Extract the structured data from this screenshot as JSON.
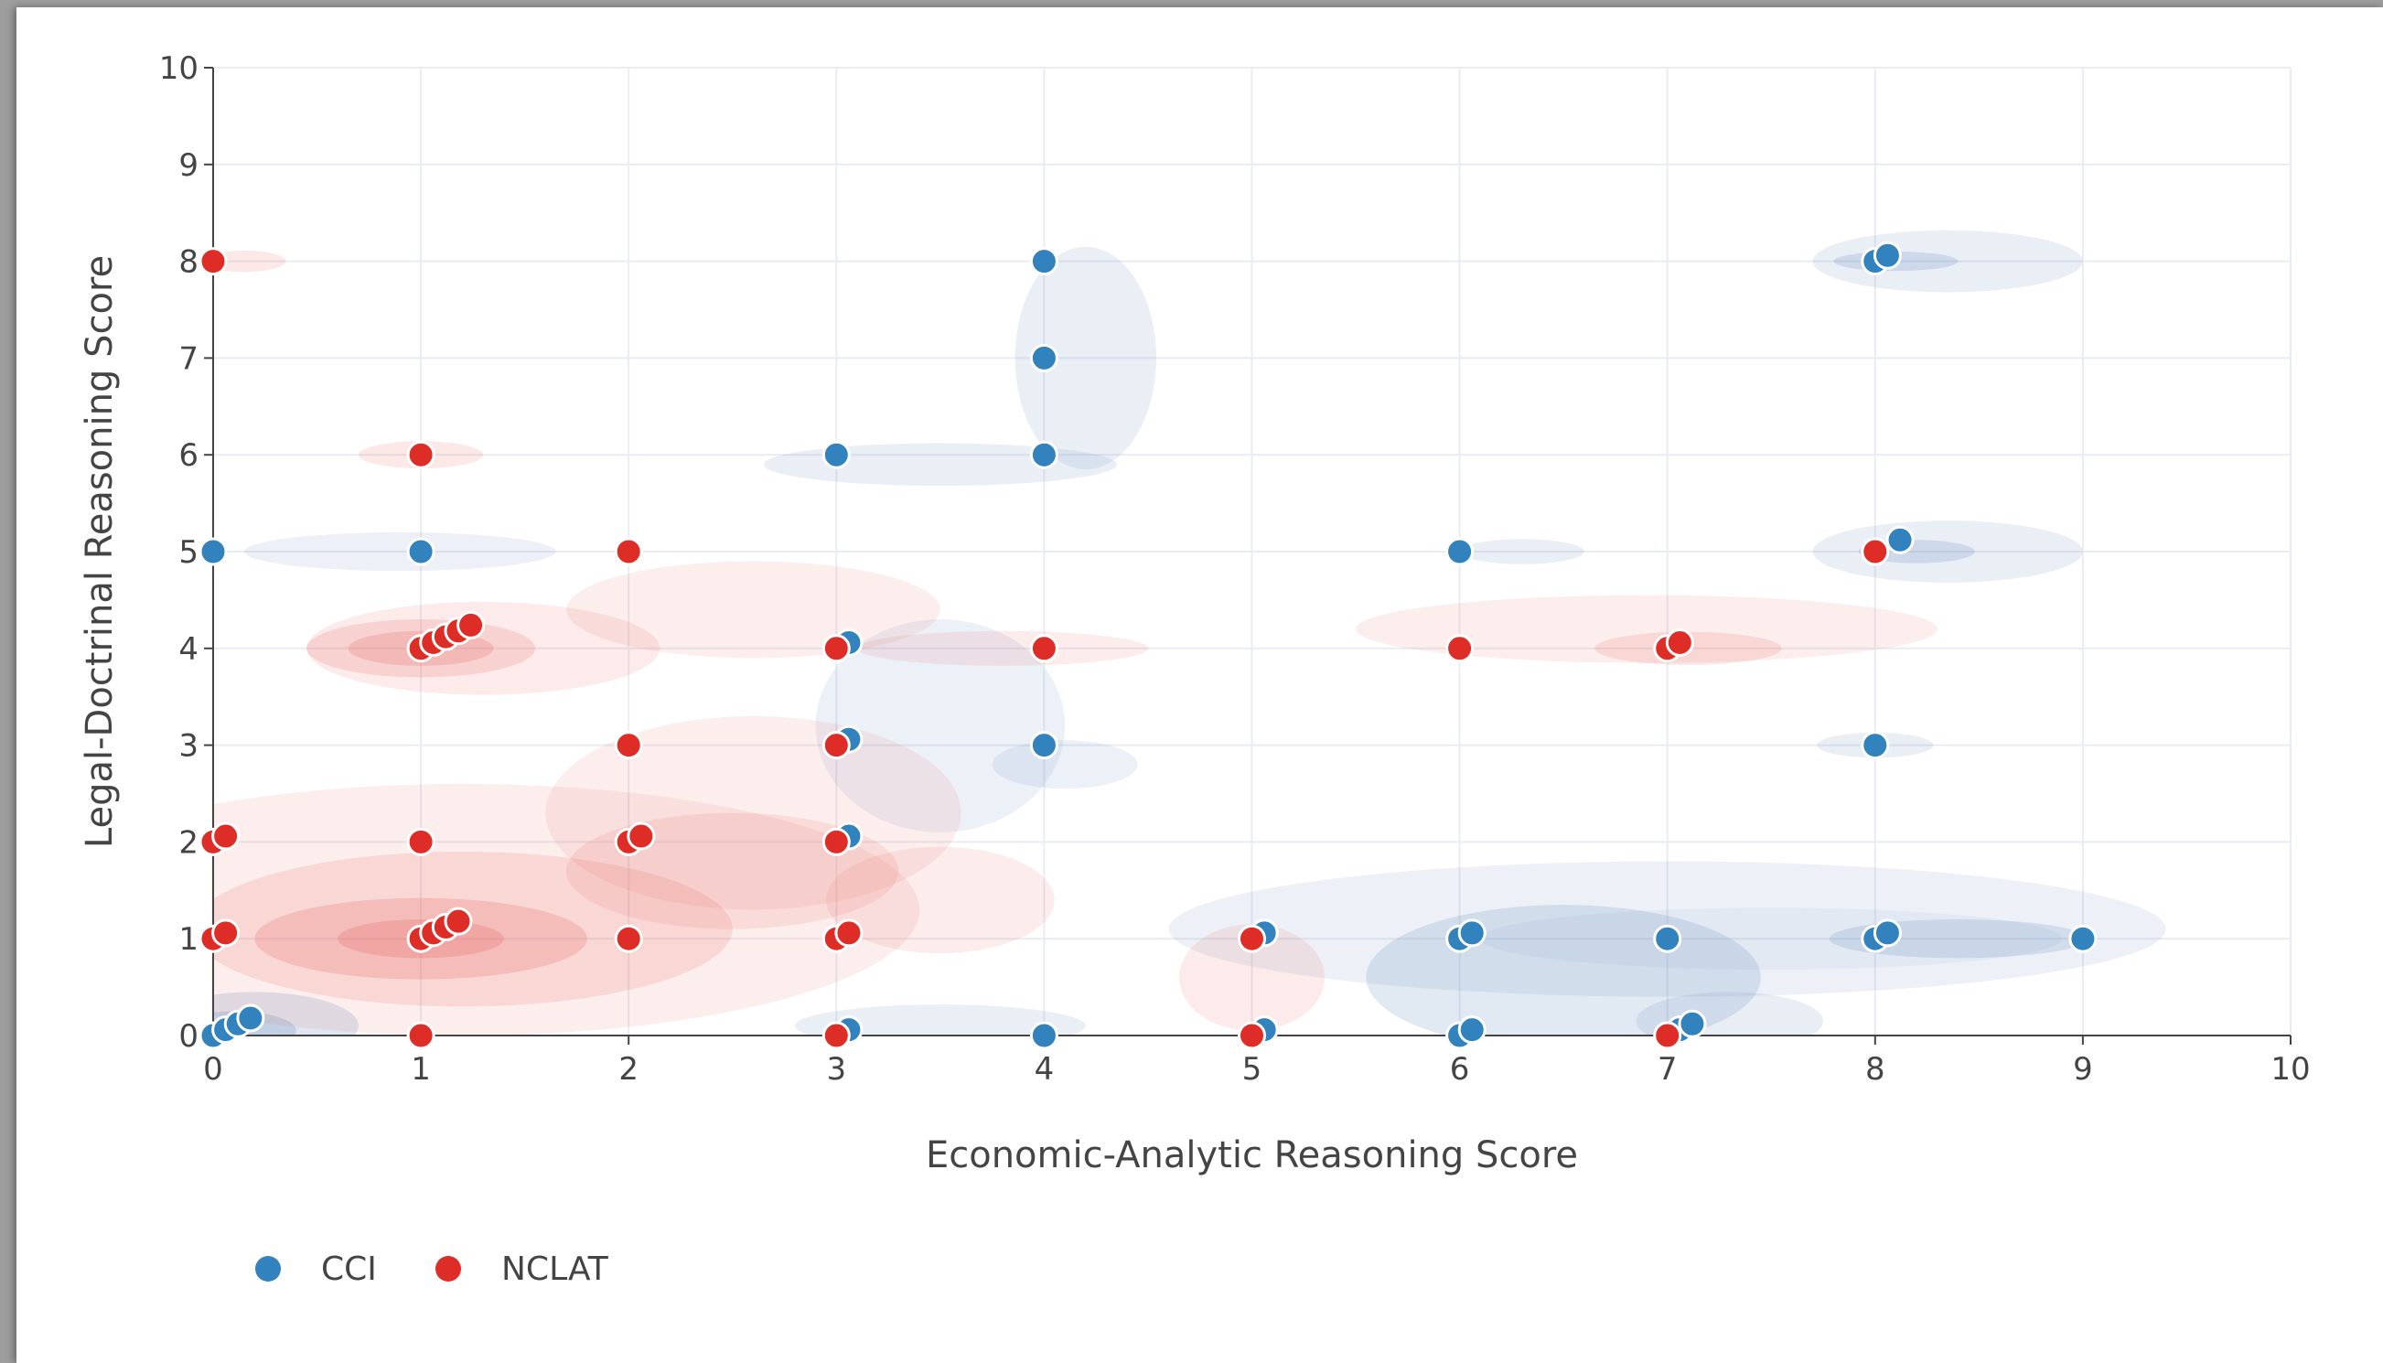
{
  "chart_data": {
    "type": "scatter",
    "xlabel": "Economic-Analytic Reasoning Score",
    "ylabel": "Legal-Doctrinal Reasoning Score",
    "xlim": [
      0,
      10
    ],
    "ylim": [
      0,
      10
    ],
    "x_ticks": [
      "0",
      "1",
      "2",
      "3",
      "4",
      "5",
      "6",
      "7",
      "8",
      "9",
      "10"
    ],
    "y_ticks": [
      "0",
      "1",
      "2",
      "3",
      "4",
      "5",
      "6",
      "7",
      "8",
      "9",
      "10"
    ],
    "grid": true,
    "density_contours": true,
    "legend_position": "bottom-left",
    "series": [
      {
        "name": "CCI",
        "color": "#3182bd",
        "points": [
          [
            4,
            8
          ],
          [
            4,
            7
          ],
          [
            3,
            6
          ],
          [
            4,
            6
          ],
          [
            0,
            5
          ],
          [
            1,
            5
          ],
          [
            6,
            5
          ],
          [
            8,
            5
          ],
          [
            8.12,
            5.12
          ],
          [
            8,
            8
          ],
          [
            8.06,
            8.06
          ],
          [
            3.06,
            4.06
          ],
          [
            3.06,
            3.06
          ],
          [
            3.06,
            2.06
          ],
          [
            4,
            3
          ],
          [
            8,
            3
          ],
          [
            5.06,
            1.06
          ],
          [
            6,
            1
          ],
          [
            6.06,
            1.06
          ],
          [
            7,
            1
          ],
          [
            8,
            1
          ],
          [
            8.06,
            1.06
          ],
          [
            9,
            1
          ],
          [
            0,
            0
          ],
          [
            0.06,
            0.06
          ],
          [
            0.12,
            0.12
          ],
          [
            0.18,
            0.18
          ],
          [
            3.06,
            0.06
          ],
          [
            4,
            0
          ],
          [
            5.06,
            0.06
          ],
          [
            6,
            0
          ],
          [
            6.06,
            0.06
          ],
          [
            7.06,
            0.06
          ],
          [
            7.12,
            0.12
          ],
          [
            1.06,
            4.06
          ],
          [
            1.12,
            4.12
          ]
        ]
      },
      {
        "name": "NCLAT",
        "color": "#de2d26",
        "points": [
          [
            0,
            8
          ],
          [
            1,
            6
          ],
          [
            2,
            5
          ],
          [
            8,
            5
          ],
          [
            1,
            4
          ],
          [
            1.06,
            4.06
          ],
          [
            1.12,
            4.12
          ],
          [
            1.18,
            4.18
          ],
          [
            1.24,
            4.24
          ],
          [
            3,
            4
          ],
          [
            4,
            4
          ],
          [
            6,
            4
          ],
          [
            7,
            4
          ],
          [
            7.06,
            4.06
          ],
          [
            2,
            3
          ],
          [
            3,
            3
          ],
          [
            0,
            2
          ],
          [
            0.06,
            2.06
          ],
          [
            1,
            2
          ],
          [
            2,
            2
          ],
          [
            2.06,
            2.06
          ],
          [
            3,
            2
          ],
          [
            0,
            1
          ],
          [
            0.06,
            1.06
          ],
          [
            1,
            1
          ],
          [
            1.06,
            1.06
          ],
          [
            1.12,
            1.12
          ],
          [
            1.18,
            1.18
          ],
          [
            2,
            1
          ],
          [
            3,
            1
          ],
          [
            3.06,
            1.06
          ],
          [
            5,
            1
          ],
          [
            1,
            0
          ],
          [
            3,
            0
          ],
          [
            5,
            0
          ],
          [
            7,
            0
          ]
        ]
      }
    ]
  }
}
